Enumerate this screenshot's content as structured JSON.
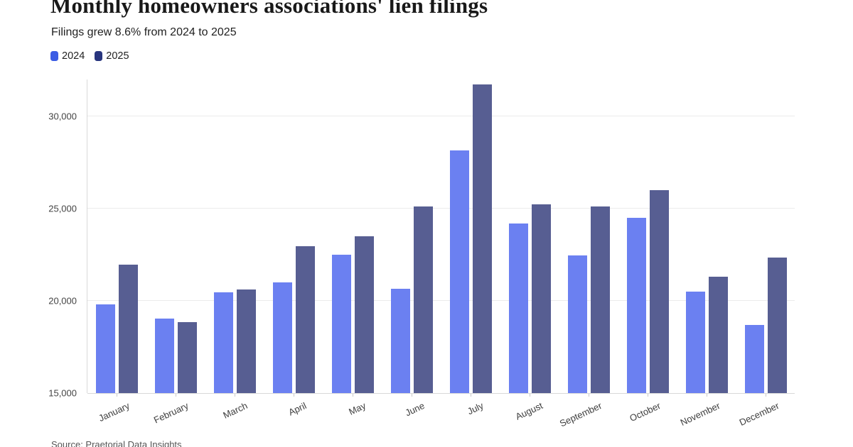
{
  "header": {
    "title": "Monthly homeowners associations' lien filings",
    "subtitle": "Filings grew 8.6% from 2024 to 2025"
  },
  "legend": [
    {
      "label": "2024",
      "color": "#3b5ce4"
    },
    {
      "label": "2025",
      "color": "#28357e"
    }
  ],
  "source": "Source: Praetorial Data Insights",
  "colors": {
    "bar_2024": "#6b80f1",
    "bar_2025": "#575e92",
    "gridline": "#ebebeb",
    "axis": "#d9d9d9"
  },
  "chart_data": {
    "type": "bar",
    "title": "Monthly homeowners associations' lien filings",
    "subtitle": "Filings grew 8.6% from 2024 to 2025",
    "categories": [
      "January",
      "February",
      "March",
      "April",
      "May",
      "June",
      "July",
      "August",
      "September",
      "October",
      "November",
      "December"
    ],
    "series": [
      {
        "name": "2024",
        "color": "#6b80f1",
        "values": [
          19800,
          19050,
          20450,
          21000,
          22500,
          20650,
          28150,
          24200,
          22450,
          24500,
          20500,
          18700
        ]
      },
      {
        "name": "2025",
        "color": "#575e92",
        "values": [
          21950,
          18850,
          20600,
          22950,
          23500,
          25100,
          31750,
          25250,
          25100,
          26000,
          21300,
          22350
        ]
      }
    ],
    "xlabel": "",
    "ylabel": "",
    "ylim": [
      15000,
      32000
    ],
    "yticks": [
      15000,
      20000,
      25000,
      30000
    ],
    "ytick_labels": [
      "15,000",
      "20,000",
      "25,000",
      "30,000"
    ],
    "xtick_rotation_deg": -25,
    "grid": true,
    "legend_position": "top-left",
    "bars_clipped_at_ymin": true
  }
}
